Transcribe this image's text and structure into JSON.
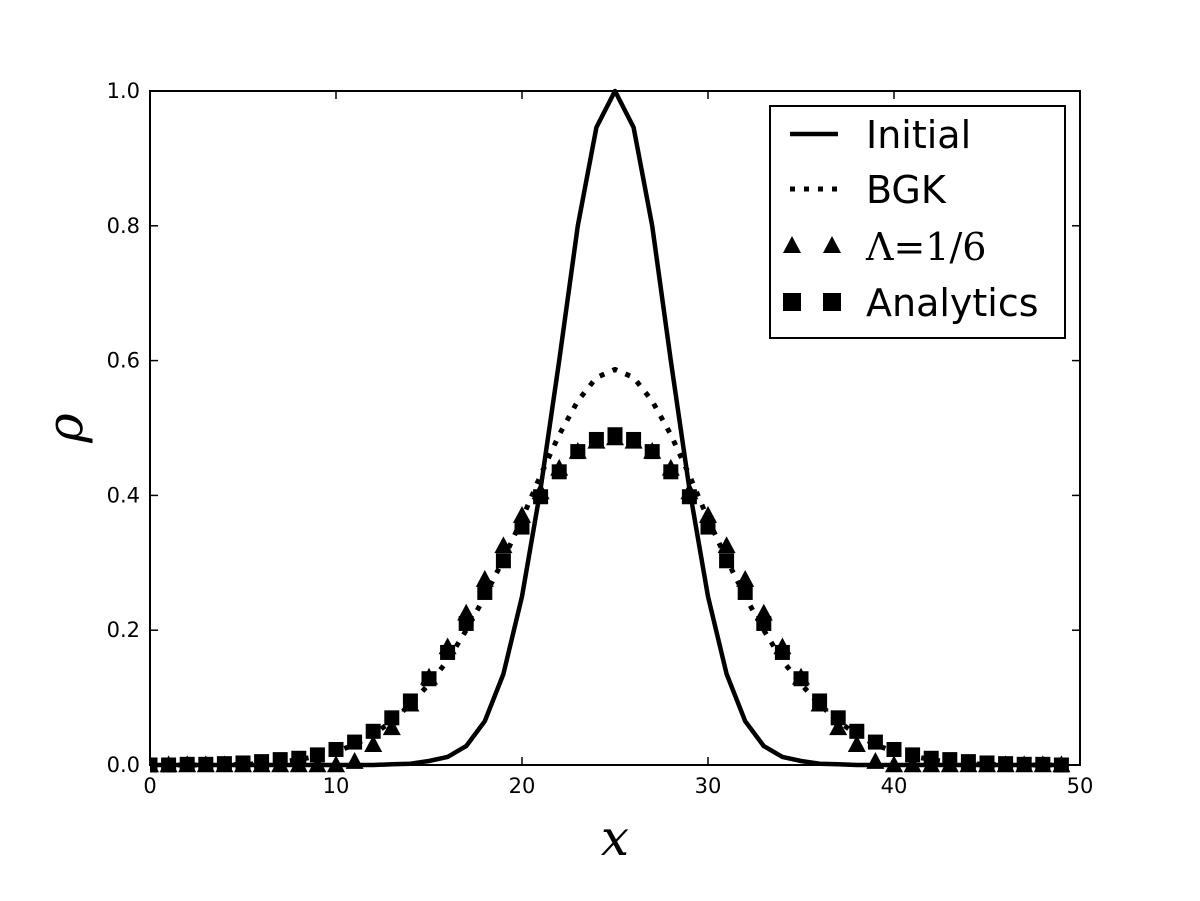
{
  "chart_data": {
    "type": "line",
    "xlabel": "x",
    "ylabel": "ρ",
    "xlim": [
      0,
      50
    ],
    "ylim": [
      0,
      1.0
    ],
    "xticks": [
      "0",
      "10",
      "20",
      "30",
      "40",
      "50"
    ],
    "yticks": [
      "0.0",
      "0.2",
      "0.4",
      "0.6",
      "0.8",
      "1.0"
    ],
    "grid": false,
    "legend_position": "top-right",
    "series": [
      {
        "name": "Initial",
        "style": "solid-line",
        "x": [
          0,
          1,
          2,
          3,
          4,
          5,
          6,
          7,
          8,
          9,
          10,
          11,
          12,
          13,
          14,
          15,
          16,
          17,
          18,
          19,
          20,
          21,
          22,
          23,
          24,
          25,
          26,
          27,
          28,
          29,
          30,
          31,
          32,
          33,
          34,
          35,
          36,
          37,
          38,
          39,
          40,
          41,
          42,
          43,
          44,
          45,
          46,
          47,
          48,
          49
        ],
        "y": [
          0,
          0,
          0,
          0,
          0,
          0,
          0,
          0,
          0,
          0,
          0,
          0,
          0,
          0.001,
          0.002,
          0.006,
          0.012,
          0.028,
          0.065,
          0.135,
          0.25,
          0.41,
          0.6,
          0.8,
          0.946,
          1.0,
          0.946,
          0.8,
          0.6,
          0.41,
          0.25,
          0.135,
          0.065,
          0.028,
          0.012,
          0.006,
          0.002,
          0.001,
          0,
          0,
          0,
          0,
          0,
          0,
          0,
          0,
          0,
          0,
          0,
          0
        ]
      },
      {
        "name": "BGK",
        "style": "dotted-line",
        "x": [
          0,
          1,
          2,
          3,
          4,
          5,
          6,
          7,
          8,
          9,
          10,
          11,
          12,
          13,
          14,
          15,
          16,
          17,
          18,
          19,
          20,
          21,
          22,
          23,
          24,
          25,
          26,
          27,
          28,
          29,
          30,
          31,
          32,
          33,
          34,
          35,
          36,
          37,
          38,
          39,
          40,
          41,
          42,
          43,
          44,
          45,
          46,
          47,
          48,
          49
        ],
        "y": [
          0,
          0,
          0,
          0,
          0,
          0.001,
          0.002,
          0.004,
          0.008,
          0.013,
          0.02,
          0.03,
          0.045,
          0.065,
          0.09,
          0.12,
          0.155,
          0.2,
          0.25,
          0.305,
          0.365,
          0.43,
          0.49,
          0.54,
          0.575,
          0.587,
          0.575,
          0.54,
          0.49,
          0.43,
          0.365,
          0.305,
          0.25,
          0.2,
          0.155,
          0.12,
          0.09,
          0.065,
          0.045,
          0.03,
          0.02,
          0.013,
          0.008,
          0.004,
          0.002,
          0.001,
          0,
          0,
          0,
          0
        ]
      },
      {
        "name": "Λ=1/6",
        "style": "triangle-markers",
        "x": [
          0,
          1,
          2,
          3,
          4,
          5,
          6,
          7,
          8,
          9,
          10,
          11,
          12,
          13,
          14,
          15,
          16,
          17,
          18,
          19,
          20,
          21,
          22,
          23,
          24,
          25,
          26,
          27,
          28,
          29,
          30,
          31,
          32,
          33,
          34,
          35,
          36,
          37,
          38,
          39,
          40,
          41,
          42,
          43,
          44,
          45,
          46,
          47,
          48,
          49
        ],
        "y": [
          0,
          0,
          0,
          0,
          0,
          0,
          0,
          0,
          0,
          0,
          0,
          0.005,
          0.03,
          0.055,
          0.09,
          0.13,
          0.175,
          0.225,
          0.275,
          0.325,
          0.37,
          0.405,
          0.44,
          0.465,
          0.48,
          0.485,
          0.48,
          0.465,
          0.44,
          0.405,
          0.37,
          0.325,
          0.275,
          0.225,
          0.175,
          0.13,
          0.09,
          0.055,
          0.03,
          0.005,
          0,
          0,
          0,
          0,
          0,
          0,
          0,
          0,
          0,
          0
        ]
      },
      {
        "name": "Analytics",
        "style": "square-markers",
        "x": [
          0,
          1,
          2,
          3,
          4,
          5,
          6,
          7,
          8,
          9,
          10,
          11,
          12,
          13,
          14,
          15,
          16,
          17,
          18,
          19,
          20,
          21,
          22,
          23,
          24,
          25,
          26,
          27,
          28,
          29,
          30,
          31,
          32,
          33,
          34,
          35,
          36,
          37,
          38,
          39,
          40,
          41,
          42,
          43,
          44,
          45,
          46,
          47,
          48,
          49
        ],
        "y": [
          0,
          0,
          0.001,
          0.001,
          0.002,
          0.003,
          0.005,
          0.008,
          0.01,
          0.015,
          0.023,
          0.034,
          0.05,
          0.07,
          0.095,
          0.128,
          0.167,
          0.21,
          0.256,
          0.303,
          0.353,
          0.398,
          0.435,
          0.465,
          0.483,
          0.49,
          0.483,
          0.465,
          0.435,
          0.398,
          0.353,
          0.303,
          0.256,
          0.21,
          0.167,
          0.128,
          0.095,
          0.07,
          0.05,
          0.034,
          0.023,
          0.015,
          0.01,
          0.008,
          0.005,
          0.003,
          0.002,
          0.001,
          0.001,
          0
        ]
      }
    ]
  }
}
